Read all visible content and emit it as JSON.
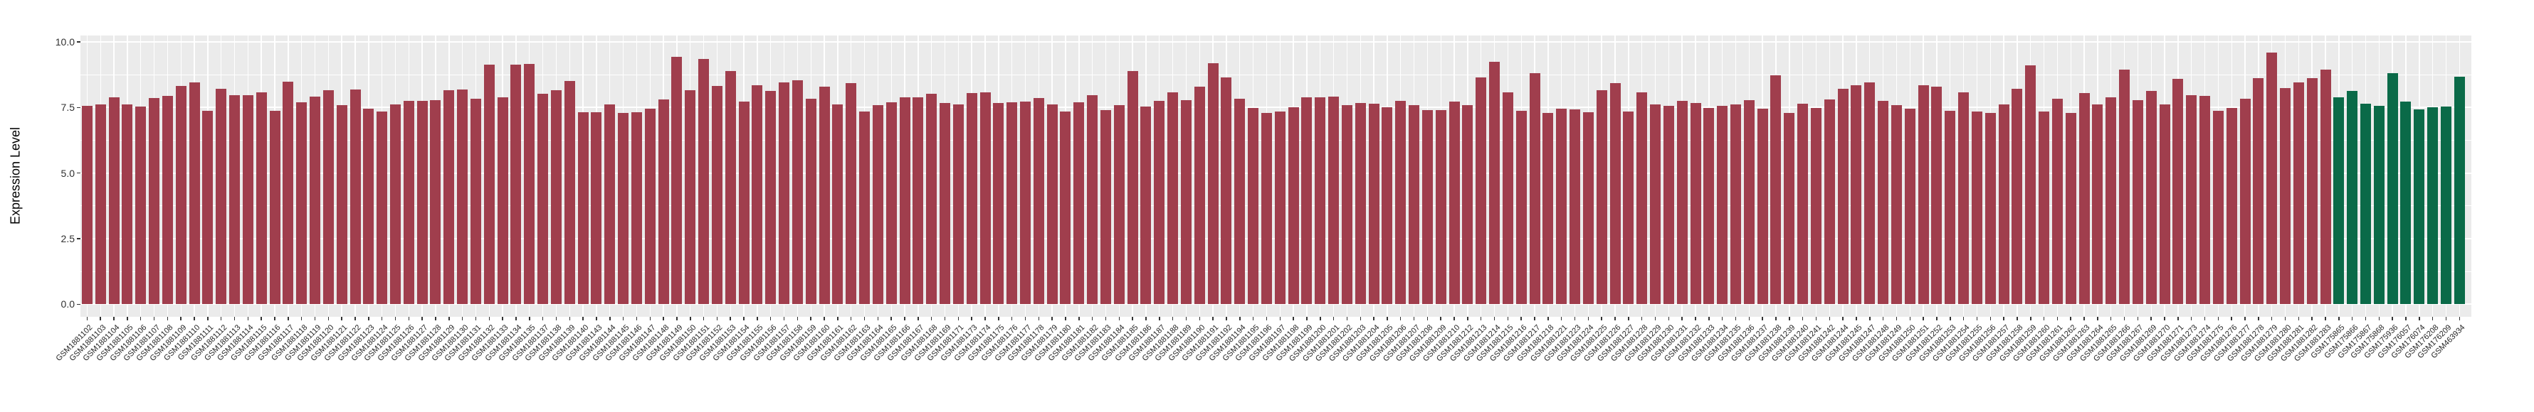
{
  "chart_data": {
    "type": "bar",
    "title": "",
    "xlabel": "",
    "ylabel": "Expression Level",
    "ylim": [
      0,
      10
    ],
    "ytick_values": [
      0,
      2.5,
      5,
      7.5,
      10
    ],
    "ytick_labels": [
      "0.0",
      "2.5",
      "5.0",
      "7.5",
      "10.0"
    ],
    "ytick_minor_values": [
      1.25,
      3.75,
      6.25,
      8.75
    ],
    "grid": true,
    "legend_position": "none",
    "series": [
      {
        "name": "maroon-group",
        "color": "#A03E4D",
        "count": 168
      },
      {
        "name": "green-group",
        "color": "#0A6A48",
        "count": 10
      }
    ],
    "categories": [
      "GSM1881102",
      "GSM1881103",
      "GSM1881104",
      "GSM1881105",
      "GSM1881106",
      "GSM1881107",
      "GSM1881108",
      "GSM1881109",
      "GSM1881110",
      "GSM1881111",
      "GSM1881112",
      "GSM1881113",
      "GSM1881114",
      "GSM1881115",
      "GSM1881116",
      "GSM1881117",
      "GSM1881118",
      "GSM1881119",
      "GSM1881120",
      "GSM1881121",
      "GSM1881122",
      "GSM1881123",
      "GSM1881124",
      "GSM1881125",
      "GSM1881126",
      "GSM1881127",
      "GSM1881128",
      "GSM1881129",
      "GSM1881130",
      "GSM1881131",
      "GSM1881132",
      "GSM1881133",
      "GSM1881134",
      "GSM1881135",
      "GSM1881137",
      "GSM1881138",
      "GSM1881139",
      "GSM1881140",
      "GSM1881143",
      "GSM1881144",
      "GSM1881145",
      "GSM1881146",
      "GSM1881147",
      "GSM1881148",
      "GSM1881149",
      "GSM1881150",
      "GSM1881151",
      "GSM1881152",
      "GSM1881153",
      "GSM1881154",
      "GSM1881155",
      "GSM1881156",
      "GSM1881157",
      "GSM1881158",
      "GSM1881159",
      "GSM1881160",
      "GSM1881161",
      "GSM1881162",
      "GSM1881163",
      "GSM1881164",
      "GSM1881165",
      "GSM1881166",
      "GSM1881167",
      "GSM1881168",
      "GSM1881169",
      "GSM1881171",
      "GSM1881173",
      "GSM1881174",
      "GSM1881175",
      "GSM1881176",
      "GSM1881177",
      "GSM1881178",
      "GSM1881179",
      "GSM1881180",
      "GSM1881181",
      "GSM1881182",
      "GSM1881183",
      "GSM1881184",
      "GSM1881185",
      "GSM1881186",
      "GSM1881187",
      "GSM1881188",
      "GSM1881189",
      "GSM1881190",
      "GSM1881191",
      "GSM1881192",
      "GSM1881194",
      "GSM1881195",
      "GSM1881196",
      "GSM1881197",
      "GSM1881198",
      "GSM1881199",
      "GSM1881200",
      "GSM1881201",
      "GSM1881202",
      "GSM1881203",
      "GSM1881204",
      "GSM1881205",
      "GSM1881206",
      "GSM1881207",
      "GSM1881208",
      "GSM1881209",
      "GSM1881210",
      "GSM1881212",
      "GSM1881213",
      "GSM1881214",
      "GSM1881215",
      "GSM1881216",
      "GSM1881217",
      "GSM1881218",
      "GSM1881221",
      "GSM1881223",
      "GSM1881224",
      "GSM1881225",
      "GSM1881226",
      "GSM1881227",
      "GSM1881228",
      "GSM1881229",
      "GSM1881230",
      "GSM1881231",
      "GSM1881232",
      "GSM1881233",
      "GSM1881234",
      "GSM1881235",
      "GSM1881236",
      "GSM1881237",
      "GSM1881238",
      "GSM1881239",
      "GSM1881240",
      "GSM1881241",
      "GSM1881242",
      "GSM1881244",
      "GSM1881245",
      "GSM1881247",
      "GSM1881248",
      "GSM1881249",
      "GSM1881250",
      "GSM1881251",
      "GSM1881252",
      "GSM1881253",
      "GSM1881254",
      "GSM1881255",
      "GSM1881256",
      "GSM1881257",
      "GSM1881258",
      "GSM1881259",
      "GSM1881260",
      "GSM1881261",
      "GSM1881262",
      "GSM1881263",
      "GSM1881264",
      "GSM1881265",
      "GSM1881266",
      "GSM1881267",
      "GSM1881269",
      "GSM1881270",
      "GSM1881271",
      "GSM1881273",
      "GSM1881274",
      "GSM1881275",
      "GSM1881276",
      "GSM1881277",
      "GSM1881278",
      "GSM1881279",
      "GSM1881280",
      "GSM1881281",
      "GSM1881282",
      "GSM1881283",
      "GSM175865",
      "GSM175866",
      "GSM175867",
      "GSM175868",
      "GSM175936",
      "GSM176057",
      "GSM176074",
      "GSM176208",
      "GSM176209",
      "GSM463934"
    ],
    "values": [
      7.56,
      7.62,
      7.9,
      7.63,
      7.53,
      7.87,
      7.93,
      8.33,
      8.47,
      7.37,
      8.22,
      7.96,
      7.97,
      8.08,
      7.37,
      8.48,
      7.7,
      7.91,
      8.16,
      7.6,
      8.19,
      7.46,
      7.34,
      7.63,
      7.75,
      7.76,
      7.78,
      8.17,
      8.18,
      7.84,
      9.14,
      7.89,
      9.14,
      9.17,
      8.02,
      8.17,
      8.52,
      7.31,
      7.33,
      7.63,
      7.28,
      7.33,
      7.46,
      7.81,
      9.44,
      8.15,
      9.35,
      8.32,
      8.88,
      7.72,
      8.34,
      8.14,
      8.45,
      8.54,
      7.84,
      8.29,
      7.61,
      8.43,
      7.34,
      7.58,
      7.7,
      7.9,
      7.89,
      8.01,
      7.66,
      7.61,
      8.04,
      8.09,
      7.66,
      7.7,
      7.72,
      7.86,
      7.63,
      7.34,
      7.7,
      7.96,
      7.4,
      7.58,
      8.89,
      7.54,
      7.76,
      8.08,
      7.79,
      8.29,
      9.19,
      8.65,
      7.84,
      7.47,
      7.3,
      7.34,
      7.52,
      7.89,
      7.89,
      7.91,
      7.6,
      7.66,
      7.64,
      7.52,
      7.76,
      7.6,
      7.41,
      7.41,
      7.72,
      7.6,
      8.65,
      9.24,
      8.08,
      7.38,
      8.8,
      7.28,
      7.45,
      7.43,
      7.31,
      8.17,
      8.44,
      7.35,
      8.08,
      7.63,
      7.57,
      7.74,
      7.68,
      7.48,
      7.57,
      7.63,
      7.78,
      7.46,
      8.72,
      7.3,
      7.64,
      7.49,
      7.8,
      8.2,
      8.35,
      8.46,
      7.76,
      7.59,
      7.46,
      8.35,
      8.29,
      7.38,
      8.08,
      7.35,
      7.3,
      7.61,
      8.22,
      9.1,
      7.34,
      7.83,
      7.29,
      8.04,
      7.63,
      7.9,
      8.94,
      7.79,
      8.12,
      7.62,
      8.59,
      7.96,
      7.95,
      7.36,
      7.47,
      7.84,
      8.62,
      9.6,
      8.23,
      8.47,
      8.62,
      8.95,
      7.9,
      8.13,
      7.64,
      7.57,
      8.81,
      7.73,
      7.44,
      7.51,
      7.53,
      8.66
    ]
  }
}
